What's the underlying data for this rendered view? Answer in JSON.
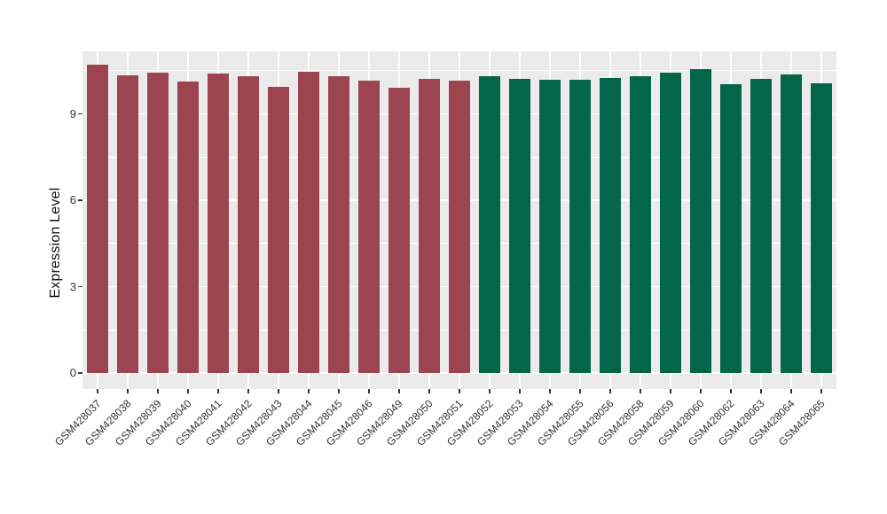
{
  "figure": {
    "background": "#FFFFFF"
  },
  "chart_data": {
    "type": "bar",
    "title": "",
    "xlabel": "",
    "ylabel": "Expression Level",
    "categories": [
      "GSM428037",
      "GSM428038",
      "GSM428039",
      "GSM428040",
      "GSM428041",
      "GSM428042",
      "GSM428043",
      "GSM428044",
      "GSM428045",
      "GSM428046",
      "GSM428049",
      "GSM428050",
      "GSM428051",
      "GSM428052",
      "GSM428053",
      "GSM428054",
      "GSM428055",
      "GSM428056",
      "GSM428058",
      "GSM428059",
      "GSM428060",
      "GSM428062",
      "GSM428063",
      "GSM428064",
      "GSM428065"
    ],
    "values": [
      10.7,
      10.35,
      10.42,
      10.11,
      10.4,
      10.3,
      9.95,
      10.47,
      10.3,
      10.16,
      9.91,
      10.22,
      10.14,
      10.32,
      10.23,
      10.19,
      10.18,
      10.25,
      10.31,
      10.42,
      10.56,
      10.02,
      10.22,
      10.38,
      10.06
    ],
    "bar_group": [
      "red",
      "red",
      "red",
      "red",
      "red",
      "red",
      "red",
      "red",
      "red",
      "red",
      "red",
      "red",
      "red",
      "green",
      "green",
      "green",
      "green",
      "green",
      "green",
      "green",
      "green",
      "green",
      "green",
      "green",
      "green"
    ],
    "group_colors": {
      "red": "#9C4450",
      "green": "#036649"
    },
    "ylim": [
      0,
      11.2
    ],
    "yticks": [
      0,
      3,
      6,
      9
    ],
    "minor_yticks": [
      1.5,
      4.5,
      7.5,
      10.5
    ],
    "grid": true,
    "legend": "none",
    "panel_bg": "#EBEBEB",
    "grid_color": "#FFFFFF",
    "axis_text_color": "#333333",
    "tick_mark_color": "#333333",
    "bar_width_ratio": 0.7
  }
}
